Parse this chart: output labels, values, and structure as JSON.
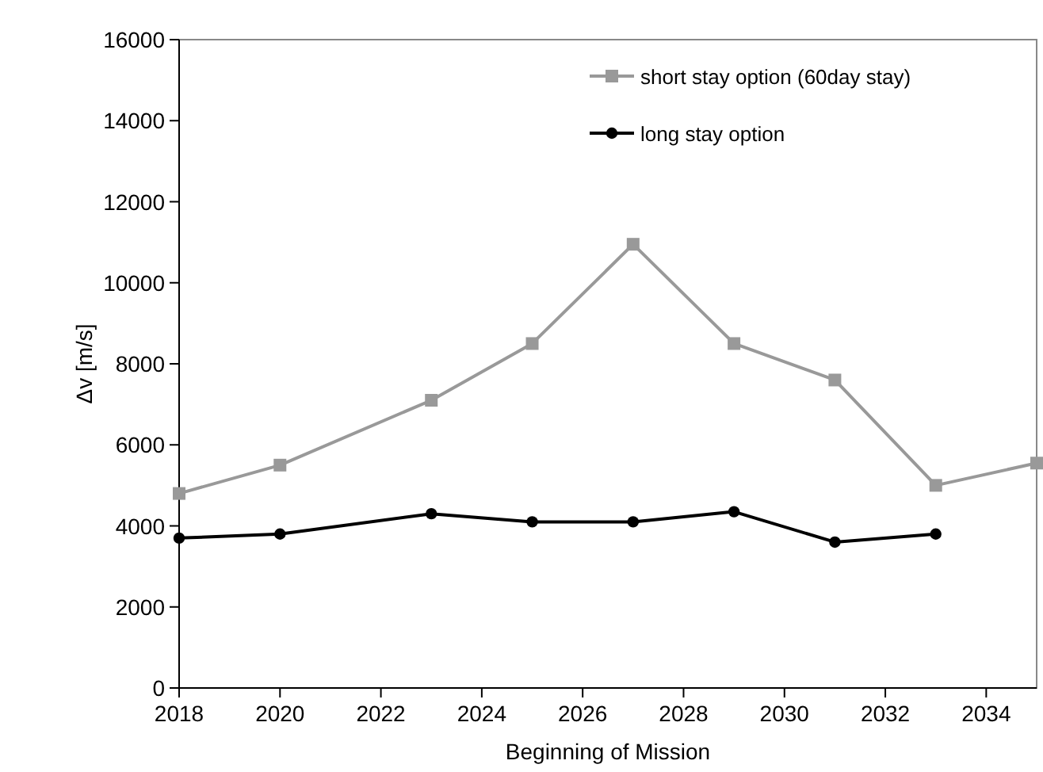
{
  "chart_data": {
    "type": "line",
    "xlabel": "Beginning of Mission",
    "ylabel": "Δv [m/s]",
    "xlim": [
      2018,
      2035
    ],
    "xticks": [
      2018,
      2020,
      2022,
      2024,
      2026,
      2028,
      2030,
      2032,
      2034
    ],
    "ylim": [
      0,
      16000
    ],
    "yticks": [
      0,
      2000,
      4000,
      6000,
      8000,
      10000,
      12000,
      14000,
      16000
    ],
    "grid": false,
    "legend": "top right",
    "line_style": "solid",
    "series": [
      {
        "name": "short stay option (60day stay)",
        "color": "#999999",
        "marker": "square",
        "x": [
          2018,
          2020,
          2023,
          2025,
          2027,
          2029,
          2031,
          2033,
          2035
        ],
        "values": [
          4800,
          5500,
          7100,
          8500,
          10950,
          8500,
          7600,
          5000,
          5550
        ]
      },
      {
        "name": "long stay option",
        "color": "#000000",
        "marker": "circle",
        "x": [
          2018,
          2020,
          2023,
          2025,
          2027,
          2029,
          2031,
          2033
        ],
        "values": [
          3700,
          3800,
          4300,
          4100,
          4100,
          4350,
          3600,
          3800
        ]
      }
    ]
  }
}
